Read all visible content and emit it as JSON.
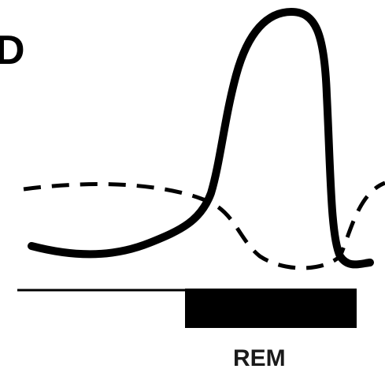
{
  "figure": {
    "panel_letter": "D",
    "epoch_label": "REM",
    "colors": {
      "curves": "#000000",
      "rem_bar": "#000000",
      "background": "#ffffff"
    },
    "series_styles": [
      "solid",
      "dashed"
    ]
  }
}
